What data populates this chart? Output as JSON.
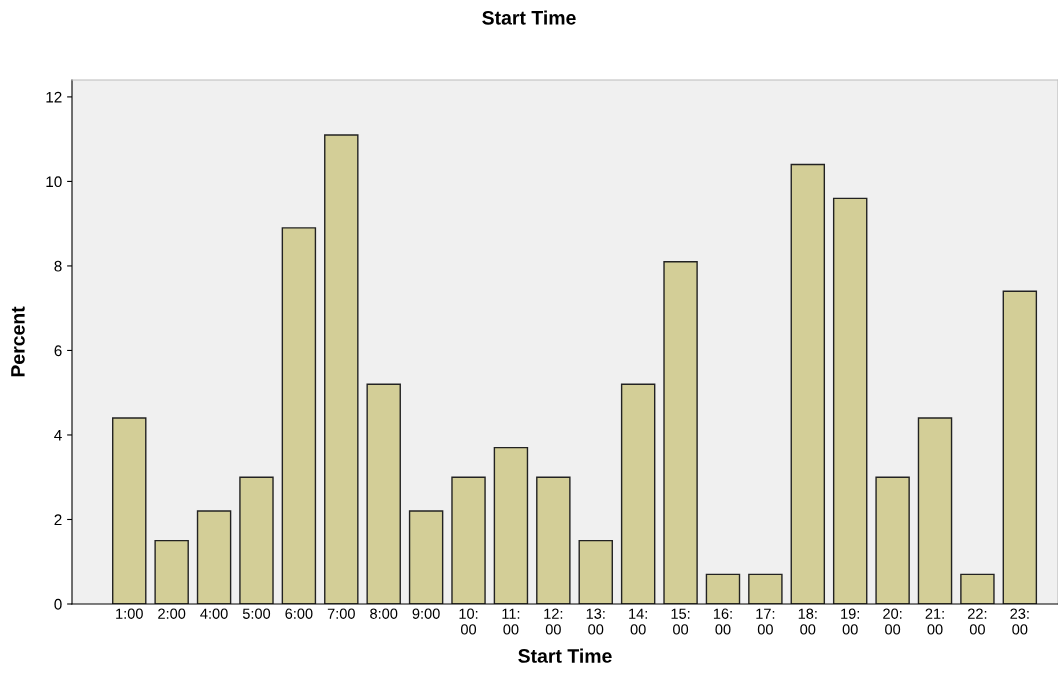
{
  "chart_data": {
    "type": "bar",
    "title": "Start Time",
    "xlabel": "Start Time",
    "ylabel": "Percent",
    "categories": [
      "1:00",
      "2:00",
      "4:00",
      "5:00",
      "6:00",
      "7:00",
      "8:00",
      "9:00",
      "10:00",
      "11:00",
      "12:00",
      "13:00",
      "14:00",
      "15:00",
      "16:00",
      "17:00",
      "18:00",
      "19:00",
      "20:00",
      "21:00",
      "22:00",
      "23:00"
    ],
    "values": [
      4.4,
      1.5,
      2.2,
      3.0,
      8.9,
      11.1,
      5.2,
      2.2,
      3.0,
      3.7,
      3.0,
      1.5,
      5.2,
      8.1,
      0.7,
      0.7,
      10.4,
      9.6,
      3.0,
      4.4,
      0.7,
      7.4
    ],
    "color": "#d3ce97",
    "ylim": [
      0,
      12.4
    ],
    "yticks": [
      0,
      2,
      4,
      6,
      8,
      10,
      12
    ],
    "grid": false,
    "legend": false
  }
}
